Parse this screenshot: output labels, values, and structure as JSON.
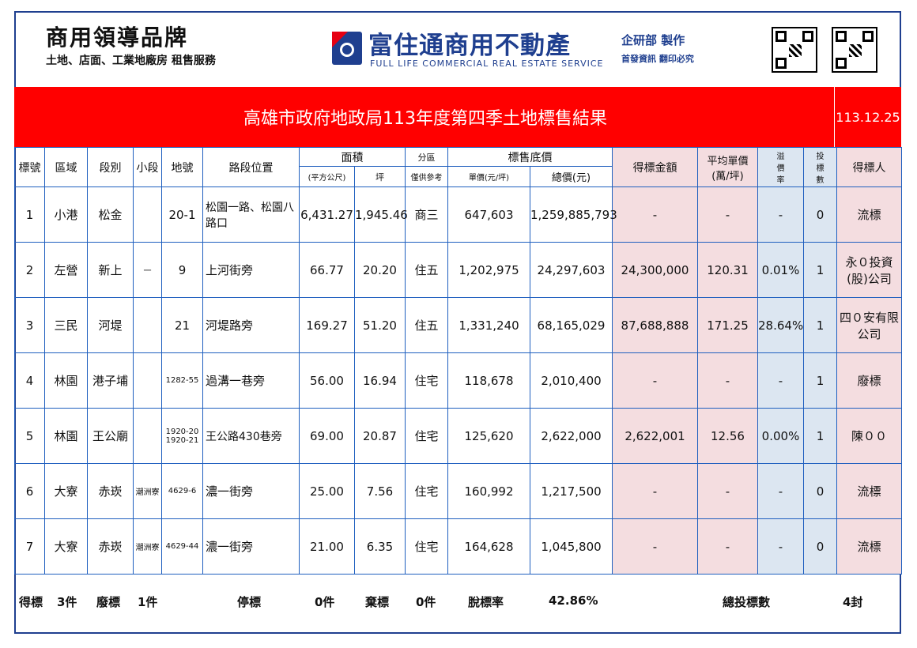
{
  "header": {
    "brand_title": "商用領導品牌",
    "brand_sub": "土地、店面、工業地廠房 租售服務",
    "company": "富住通商用不動產",
    "company_en": "FULL LIFE COMMERCIAL REAL ESTATE SERVICE",
    "dept": "企研部 製作",
    "dept_note": "首發資訊 翻印必究"
  },
  "title": "高雄市政府地政局113年度第四季土地標售結果",
  "date": "113.12.25",
  "columns": {
    "no": "標號",
    "district": "區域",
    "section": "段別",
    "subsection": "小段",
    "lot": "地號",
    "location": "路段位置",
    "area": "面積",
    "area_m2": "(平方公尺)",
    "area_ping": "坪",
    "zone": "分區",
    "zone_note": "僅供參考",
    "base_price": "標售底價",
    "unit_price": "單價(元/坪)",
    "total_price": "總價(元)",
    "win_amount": "得標金額",
    "avg_price": "平均單價",
    "avg_price_unit": "(萬/坪)",
    "premium_rate": [
      "溢",
      "價",
      "率"
    ],
    "bid_count": [
      "投",
      "標",
      "數"
    ],
    "winner": "得標人"
  },
  "rows": [
    {
      "no": "1",
      "district": "小港",
      "section": "松金",
      "subsection": "",
      "lot": "20-1",
      "location": "松園一路、松園八路口",
      "area_m2": "6,431.27",
      "area_ping": "1,945.46",
      "zone": "商三",
      "unit_price": "647,603",
      "total_price": "1,259,885,793",
      "win_amount": "-",
      "avg_price": "-",
      "premium_rate": "-",
      "bid_count": "0",
      "winner": "流標"
    },
    {
      "no": "2",
      "district": "左營",
      "section": "新上",
      "subsection": "一",
      "lot": "9",
      "location": "上河街旁",
      "area_m2": "66.77",
      "area_ping": "20.20",
      "zone": "住五",
      "unit_price": "1,202,975",
      "total_price": "24,297,603",
      "win_amount": "24,300,000",
      "avg_price": "120.31",
      "premium_rate": "0.01%",
      "bid_count": "1",
      "winner": "永０投資(股)公司"
    },
    {
      "no": "3",
      "district": "三民",
      "section": "河堤",
      "subsection": "",
      "lot": "21",
      "location": "河堤路旁",
      "area_m2": "169.27",
      "area_ping": "51.20",
      "zone": "住五",
      "unit_price": "1,331,240",
      "total_price": "68,165,029",
      "win_amount": "87,688,888",
      "avg_price": "171.25",
      "premium_rate": "28.64%",
      "bid_count": "1",
      "winner": "四０安有限公司"
    },
    {
      "no": "4",
      "district": "林園",
      "section": "港子埔",
      "subsection": "",
      "lot": "1282-55",
      "location": "過溝一巷旁",
      "area_m2": "56.00",
      "area_ping": "16.94",
      "zone": "住宅",
      "unit_price": "118,678",
      "total_price": "2,010,400",
      "win_amount": "-",
      "avg_price": "-",
      "premium_rate": "-",
      "bid_count": "1",
      "winner": "廢標"
    },
    {
      "no": "5",
      "district": "林園",
      "section": "王公廟",
      "subsection": "",
      "lot": "1920-20 1920-21",
      "location": "王公路430巷旁",
      "area_m2": "69.00",
      "area_ping": "20.87",
      "zone": "住宅",
      "unit_price": "125,620",
      "total_price": "2,622,000",
      "win_amount": "2,622,001",
      "avg_price": "12.56",
      "premium_rate": "0.00%",
      "bid_count": "1",
      "winner": "陳００"
    },
    {
      "no": "6",
      "district": "大寮",
      "section": "赤崁",
      "subsection": "潮洲寮",
      "lot": "4629-6",
      "location": "濃一街旁",
      "area_m2": "25.00",
      "area_ping": "7.56",
      "zone": "住宅",
      "unit_price": "160,992",
      "total_price": "1,217,500",
      "win_amount": "-",
      "avg_price": "-",
      "premium_rate": "-",
      "bid_count": "0",
      "winner": "流標"
    },
    {
      "no": "7",
      "district": "大寮",
      "section": "赤崁",
      "subsection": "潮洲寮",
      "lot": "4629-44",
      "location": "濃一街旁",
      "area_m2": "21.00",
      "area_ping": "6.35",
      "zone": "住宅",
      "unit_price": "164,628",
      "total_price": "1,045,800",
      "win_amount": "-",
      "avg_price": "-",
      "premium_rate": "-",
      "bid_count": "0",
      "winner": "流標"
    }
  ],
  "summary": {
    "won_label": "得標",
    "won_value": "3件",
    "void_label": "廢標",
    "void_value": "1件",
    "halt_label": "停標",
    "halt_value": "0件",
    "abandon_label": "棄標",
    "abandon_value": "0件",
    "fail_rate_label": "脫標率",
    "fail_rate_value": "42.86%",
    "total_bids_label": "總投標數",
    "total_bids_value": "4封"
  },
  "colors": {
    "title_bg": "#ff0000",
    "brand_blue": "#1f3f8f",
    "pink_cell": "#f4dde0",
    "blue_cell": "#dce6f1"
  }
}
